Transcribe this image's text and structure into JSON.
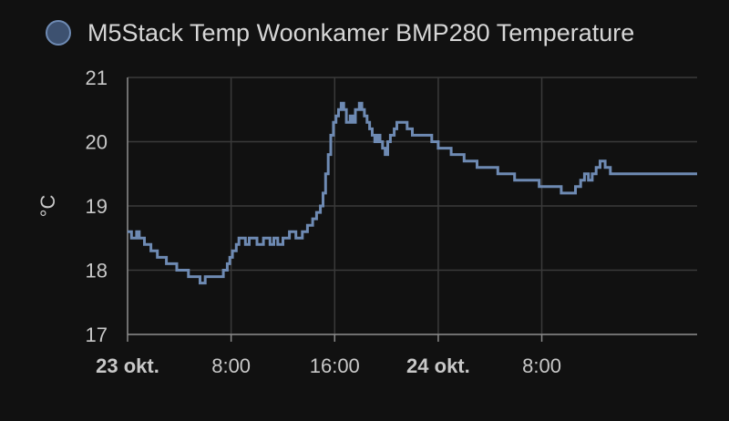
{
  "chart_data": {
    "type": "line",
    "step": true,
    "ylabel": "°C",
    "ylim": [
      17,
      21
    ],
    "yticks": [
      17,
      18,
      19,
      20,
      21
    ],
    "xlim": [
      0,
      44
    ],
    "xticks": [
      {
        "value": 0,
        "label": "23 okt.",
        "bold": true
      },
      {
        "value": 8,
        "label": "8:00",
        "bold": false
      },
      {
        "value": 16,
        "label": "16:00",
        "bold": false
      },
      {
        "value": 24,
        "label": "24 okt.",
        "bold": true
      },
      {
        "value": 32,
        "label": "8:00",
        "bold": false
      }
    ],
    "grid": true,
    "legend_position": "top-left",
    "series": [
      {
        "name": "M5Stack Temp Woonkamer BMP280 Temperature",
        "color": "#6e8ab3",
        "points": [
          [
            0.0,
            18.6
          ],
          [
            0.3,
            18.5
          ],
          [
            0.7,
            18.6
          ],
          [
            0.9,
            18.5
          ],
          [
            1.3,
            18.4
          ],
          [
            1.8,
            18.3
          ],
          [
            2.3,
            18.2
          ],
          [
            3.0,
            18.1
          ],
          [
            3.8,
            18.0
          ],
          [
            4.7,
            17.9
          ],
          [
            5.0,
            17.9
          ],
          [
            5.6,
            17.8
          ],
          [
            6.0,
            17.9
          ],
          [
            6.5,
            17.9
          ],
          [
            7.1,
            17.9
          ],
          [
            7.4,
            18.0
          ],
          [
            7.7,
            18.1
          ],
          [
            7.9,
            18.2
          ],
          [
            8.1,
            18.3
          ],
          [
            8.4,
            18.4
          ],
          [
            8.6,
            18.5
          ],
          [
            9.1,
            18.4
          ],
          [
            9.4,
            18.5
          ],
          [
            10.0,
            18.4
          ],
          [
            10.5,
            18.5
          ],
          [
            11.0,
            18.4
          ],
          [
            11.3,
            18.5
          ],
          [
            11.6,
            18.4
          ],
          [
            12.0,
            18.5
          ],
          [
            12.5,
            18.6
          ],
          [
            13.0,
            18.5
          ],
          [
            13.5,
            18.6
          ],
          [
            13.9,
            18.7
          ],
          [
            14.3,
            18.8
          ],
          [
            14.6,
            18.9
          ],
          [
            14.9,
            19.0
          ],
          [
            15.1,
            19.2
          ],
          [
            15.3,
            19.5
          ],
          [
            15.5,
            19.8
          ],
          [
            15.7,
            20.1
          ],
          [
            15.9,
            20.3
          ],
          [
            16.1,
            20.4
          ],
          [
            16.3,
            20.5
          ],
          [
            16.5,
            20.6
          ],
          [
            16.7,
            20.5
          ],
          [
            16.9,
            20.3
          ],
          [
            17.2,
            20.4
          ],
          [
            17.4,
            20.3
          ],
          [
            17.6,
            20.5
          ],
          [
            17.9,
            20.6
          ],
          [
            18.1,
            20.5
          ],
          [
            18.3,
            20.4
          ],
          [
            18.5,
            20.3
          ],
          [
            18.7,
            20.2
          ],
          [
            18.9,
            20.1
          ],
          [
            19.1,
            20.0
          ],
          [
            19.3,
            20.1
          ],
          [
            19.5,
            20.0
          ],
          [
            19.7,
            19.9
          ],
          [
            19.9,
            19.8
          ],
          [
            20.1,
            20.0
          ],
          [
            20.3,
            20.1
          ],
          [
            20.6,
            20.2
          ],
          [
            20.8,
            20.3
          ],
          [
            21.6,
            20.2
          ],
          [
            22.0,
            20.1
          ],
          [
            23.0,
            20.1
          ],
          [
            23.5,
            20.0
          ],
          [
            24.0,
            19.9
          ],
          [
            24.5,
            19.9
          ],
          [
            25.0,
            19.8
          ],
          [
            26.0,
            19.7
          ],
          [
            27.0,
            19.6
          ],
          [
            28.0,
            19.6
          ],
          [
            28.6,
            19.5
          ],
          [
            29.3,
            19.5
          ],
          [
            29.9,
            19.4
          ],
          [
            31.0,
            19.4
          ],
          [
            31.8,
            19.3
          ],
          [
            32.3,
            19.3
          ],
          [
            33.0,
            19.3
          ],
          [
            33.5,
            19.2
          ],
          [
            34.6,
            19.3
          ],
          [
            35.0,
            19.4
          ],
          [
            35.3,
            19.5
          ],
          [
            35.6,
            19.4
          ],
          [
            35.9,
            19.5
          ],
          [
            36.2,
            19.6
          ],
          [
            36.5,
            19.7
          ],
          [
            36.9,
            19.6
          ],
          [
            37.3,
            19.5
          ],
          [
            37.6,
            19.5
          ]
        ]
      }
    ]
  }
}
